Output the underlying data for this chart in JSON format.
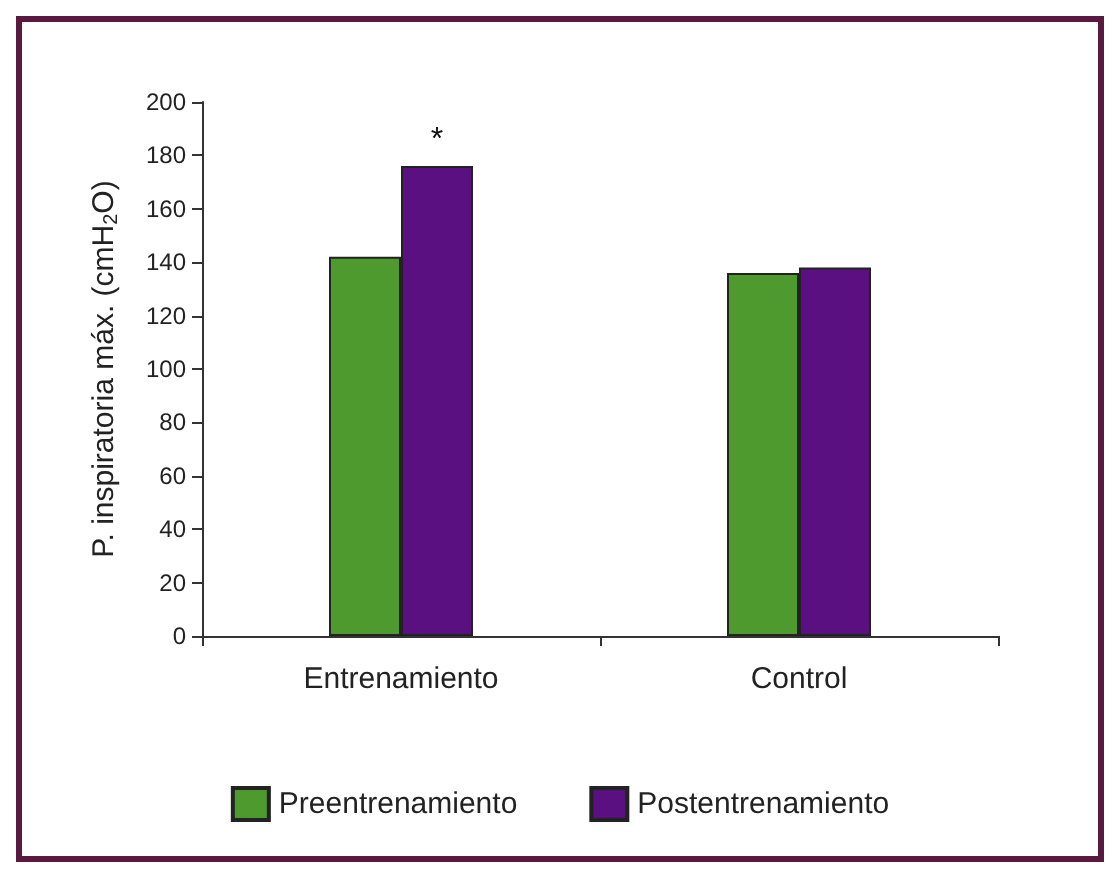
{
  "chart_data": {
    "type": "bar",
    "ylabel": "P. inspiratoria máx. (cmH$_{2}$O)",
    "categories": [
      "Entrenamiento",
      "Control"
    ],
    "series": [
      {
        "name": "Preentrenamiento",
        "color": "#4f9a2e",
        "values": [
          142,
          136
        ]
      },
      {
        "name": "Postentrenamiento",
        "color": "#5a1080",
        "values": [
          176,
          138
        ]
      }
    ],
    "ylim": [
      0,
      200
    ],
    "yticks": [
      0,
      20,
      40,
      60,
      80,
      100,
      120,
      140,
      160,
      180,
      200
    ],
    "grid": false,
    "legend": "bottom",
    "annotations": [
      {
        "text": "*",
        "x": "Entrenamiento",
        "y": 176
      }
    ]
  }
}
